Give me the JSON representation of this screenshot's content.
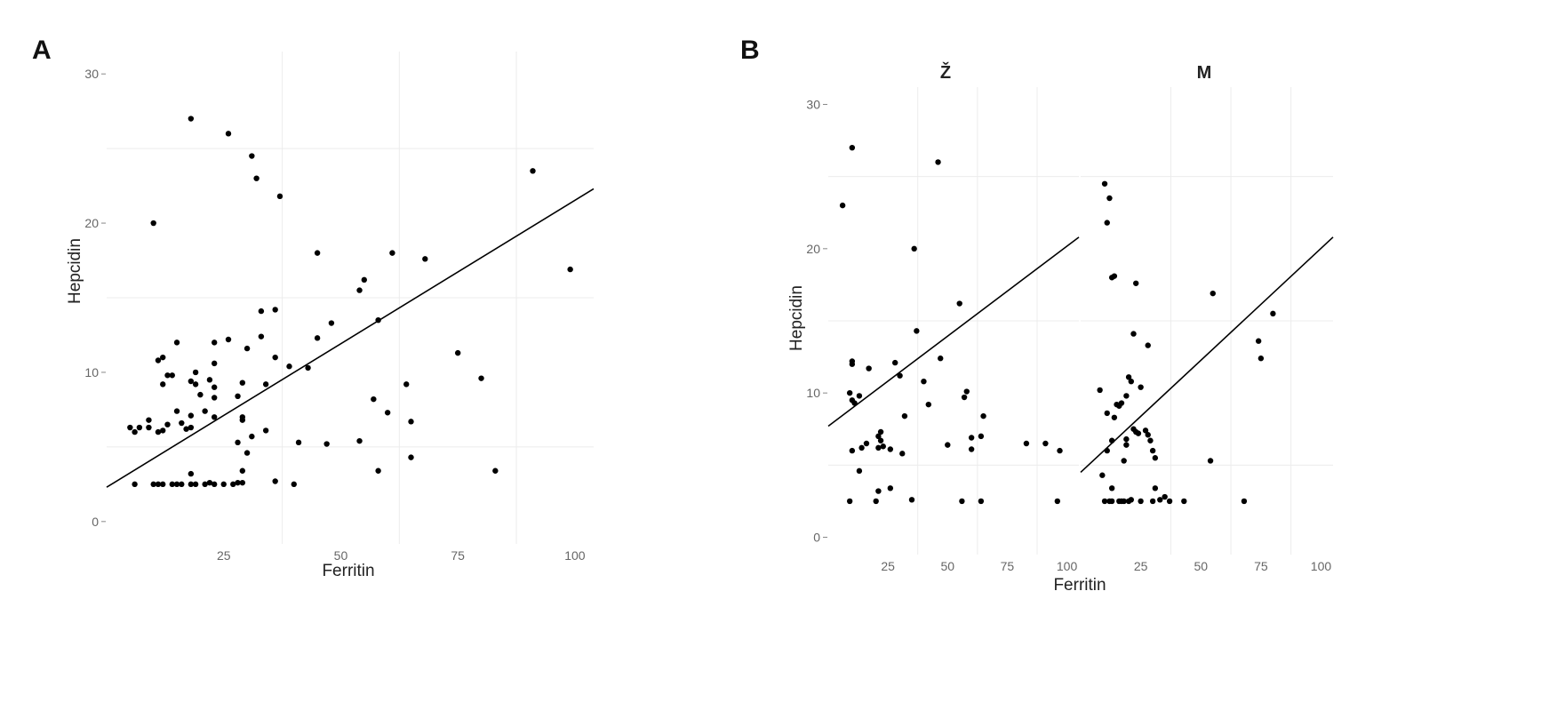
{
  "chart_data": [
    {
      "type": "scatter",
      "panel_label": "A",
      "xlabel": "Ferritin",
      "ylabel": "Hepcidin",
      "xlim": [
        0,
        104
      ],
      "ylim": [
        -1.5,
        31.5
      ],
      "x_ticks": [
        25,
        50,
        75,
        100
      ],
      "x_tick_labels": [
        "25",
        "50",
        "75",
        "100"
      ],
      "y_ticks": [
        0,
        10,
        20,
        30
      ],
      "y_tick_labels": [
        "0",
        "10",
        "20",
        "30"
      ],
      "grid": true,
      "points": [
        [
          5,
          6.3
        ],
        [
          6,
          6
        ],
        [
          7,
          6.3
        ],
        [
          9,
          6.3
        ],
        [
          9,
          6.8
        ],
        [
          6,
          2.5
        ],
        [
          10,
          2.5
        ],
        [
          11,
          2.5
        ],
        [
          12,
          2.5
        ],
        [
          14,
          2.5
        ],
        [
          15,
          2.5
        ],
        [
          16,
          2.5
        ],
        [
          18,
          2.5
        ],
        [
          19,
          2.5
        ],
        [
          21,
          2.5
        ],
        [
          22,
          2.6
        ],
        [
          23,
          2.5
        ],
        [
          25,
          2.5
        ],
        [
          27,
          2.5
        ],
        [
          28,
          2.6
        ],
        [
          29,
          2.6
        ],
        [
          10,
          20
        ],
        [
          11,
          10.8
        ],
        [
          12,
          11
        ],
        [
          11,
          6
        ],
        [
          12,
          6.1
        ],
        [
          12,
          9.2
        ],
        [
          13,
          9.8
        ],
        [
          14,
          9.8
        ],
        [
          13,
          6.5
        ],
        [
          15,
          7.4
        ],
        [
          15,
          12
        ],
        [
          16,
          6.6
        ],
        [
          17,
          6.2
        ],
        [
          18,
          6.3
        ],
        [
          18,
          7.1
        ],
        [
          18,
          9.4
        ],
        [
          19,
          10
        ],
        [
          19,
          9.2
        ],
        [
          20,
          8.5
        ],
        [
          21,
          7.4
        ],
        [
          22,
          9.5
        ],
        [
          23,
          12
        ],
        [
          23,
          10.6
        ],
        [
          23,
          9
        ],
        [
          23,
          8.3
        ],
        [
          23,
          7
        ],
        [
          18,
          3.2
        ],
        [
          18,
          27
        ],
        [
          26,
          26
        ],
        [
          31,
          24.5
        ],
        [
          32,
          23
        ],
        [
          37,
          21.8
        ],
        [
          26,
          12.2
        ],
        [
          28,
          8.4
        ],
        [
          29,
          9.3
        ],
        [
          29,
          7
        ],
        [
          29,
          6.8
        ],
        [
          30,
          4.6
        ],
        [
          29,
          3.4
        ],
        [
          28,
          5.3
        ],
        [
          30,
          11.6
        ],
        [
          31,
          5.7
        ],
        [
          33,
          12.4
        ],
        [
          33,
          14.1
        ],
        [
          34,
          9.2
        ],
        [
          34,
          6.1
        ],
        [
          36,
          14.2
        ],
        [
          36,
          11
        ],
        [
          36,
          2.7
        ],
        [
          39,
          10.4
        ],
        [
          40,
          2.5
        ],
        [
          41,
          5.3
        ],
        [
          43,
          10.3
        ],
        [
          45,
          18
        ],
        [
          45,
          12.3
        ],
        [
          47,
          5.2
        ],
        [
          48,
          13.3
        ],
        [
          54,
          15.5
        ],
        [
          55,
          16.2
        ],
        [
          54,
          5.4
        ],
        [
          57,
          8.2
        ],
        [
          58,
          13.5
        ],
        [
          58,
          3.4
        ],
        [
          60,
          7.3
        ],
        [
          61,
          18
        ],
        [
          64,
          9.2
        ],
        [
          65,
          6.7
        ],
        [
          65,
          4.3
        ],
        [
          68,
          17.6
        ],
        [
          75,
          11.3
        ],
        [
          80,
          9.6
        ],
        [
          83,
          3.4
        ],
        [
          91,
          23.5
        ],
        [
          99,
          16.9
        ]
      ],
      "fit": {
        "x": [
          0,
          104
        ],
        "y": [
          2.3,
          22.3
        ]
      }
    },
    {
      "type": "scatter",
      "panel_label": "B",
      "facet": "Ž",
      "xlabel": "Ferritin",
      "ylabel": "Hepcidin",
      "xlim": [
        0,
        105
      ],
      "ylim": [
        -1.2,
        31.2
      ],
      "x_ticks": [
        25,
        50,
        75,
        100
      ],
      "x_tick_labels": [
        "25",
        "50",
        "75",
        "100"
      ],
      "y_ticks": [
        0,
        10,
        20,
        30
      ],
      "y_tick_labels": [
        "0",
        "10",
        "20",
        "30"
      ],
      "grid": true,
      "points": [
        [
          6,
          23
        ],
        [
          9,
          2.5
        ],
        [
          10,
          27
        ],
        [
          10,
          12.2
        ],
        [
          10,
          12
        ],
        [
          9,
          10
        ],
        [
          10,
          9.5
        ],
        [
          11,
          9.3
        ],
        [
          13,
          9.8
        ],
        [
          13,
          4.6
        ],
        [
          10,
          6
        ],
        [
          14,
          6.2
        ],
        [
          16,
          6.5
        ],
        [
          17,
          11.7
        ],
        [
          20,
          2.5
        ],
        [
          21,
          3.2
        ],
        [
          21,
          6.2
        ],
        [
          21,
          7
        ],
        [
          22,
          7.3
        ],
        [
          22,
          6.7
        ],
        [
          23,
          6.3
        ],
        [
          26,
          6.1
        ],
        [
          26,
          3.4
        ],
        [
          28,
          12.1
        ],
        [
          30,
          11.2
        ],
        [
          31,
          5.8
        ],
        [
          32,
          8.4
        ],
        [
          36,
          20
        ],
        [
          35,
          2.6
        ],
        [
          37,
          14.3
        ],
        [
          40,
          10.8
        ],
        [
          42,
          9.2
        ],
        [
          46,
          26
        ],
        [
          47,
          12.4
        ],
        [
          50,
          6.4
        ],
        [
          55,
          16.2
        ],
        [
          56,
          2.5
        ],
        [
          58,
          10.1
        ],
        [
          57,
          9.7
        ],
        [
          60,
          6.9
        ],
        [
          60,
          6.1
        ],
        [
          64,
          7
        ],
        [
          65,
          8.4
        ],
        [
          64,
          2.5
        ],
        [
          83,
          6.5
        ],
        [
          91,
          6.5
        ],
        [
          96,
          2.5
        ],
        [
          97,
          6
        ]
      ],
      "fit": {
        "x": [
          0,
          105
        ],
        "y": [
          7.7,
          20.8
        ]
      }
    },
    {
      "type": "scatter",
      "facet": "M",
      "xlabel": "",
      "ylabel": "",
      "xlim": [
        0,
        105
      ],
      "ylim": [
        -1.2,
        31.2
      ],
      "x_ticks": [
        25,
        50,
        75,
        100
      ],
      "x_tick_labels": [
        "25",
        "50",
        "75",
        "100"
      ],
      "grid": true,
      "points": [
        [
          10,
          24.5
        ],
        [
          11,
          21.8
        ],
        [
          12,
          23.5
        ],
        [
          13,
          18
        ],
        [
          14,
          18.1
        ],
        [
          8,
          10.2
        ],
        [
          9,
          4.3
        ],
        [
          10,
          2.5
        ],
        [
          11,
          8.6
        ],
        [
          11,
          6
        ],
        [
          13,
          6.7
        ],
        [
          13,
          3.4
        ],
        [
          14,
          8.3
        ],
        [
          12,
          2.5
        ],
        [
          13,
          2.5
        ],
        [
          15,
          9.2
        ],
        [
          16,
          9.1
        ],
        [
          17,
          9.3
        ],
        [
          16,
          2.5
        ],
        [
          17,
          2.5
        ],
        [
          18,
          5.3
        ],
        [
          18,
          2.5
        ],
        [
          19,
          9.8
        ],
        [
          19,
          6.8
        ],
        [
          19,
          6.4
        ],
        [
          20,
          11.1
        ],
        [
          20,
          2.5
        ],
        [
          21,
          2.6
        ],
        [
          21,
          10.8
        ],
        [
          22,
          14.1
        ],
        [
          23,
          17.6
        ],
        [
          22,
          7.5
        ],
        [
          23,
          7.3
        ],
        [
          24,
          7.2
        ],
        [
          25,
          10.4
        ],
        [
          25,
          2.5
        ],
        [
          27,
          7.4
        ],
        [
          28,
          13.3
        ],
        [
          28,
          7.1
        ],
        [
          29,
          6.7
        ],
        [
          30,
          6
        ],
        [
          31,
          5.5
        ],
        [
          30,
          2.5
        ],
        [
          31,
          3.4
        ],
        [
          33,
          2.6
        ],
        [
          35,
          2.8
        ],
        [
          37,
          2.5
        ],
        [
          43,
          2.5
        ],
        [
          54,
          5.3
        ],
        [
          55,
          16.9
        ],
        [
          68,
          2.5
        ],
        [
          74,
          13.6
        ],
        [
          75,
          12.4
        ],
        [
          80,
          15.5
        ]
      ],
      "fit": {
        "x": [
          0,
          105
        ],
        "y": [
          4.5,
          20.8
        ]
      }
    }
  ]
}
